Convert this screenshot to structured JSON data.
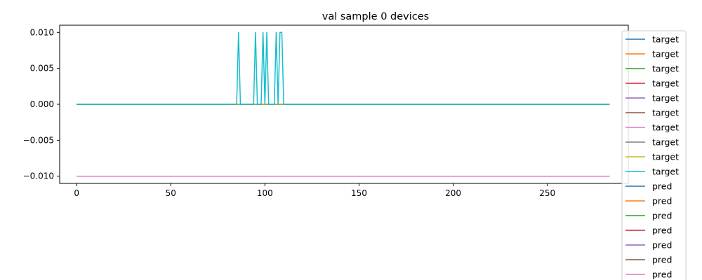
{
  "chart_data": {
    "type": "line",
    "title": "val sample 0 devices",
    "xlabel": "",
    "ylabel": "",
    "xlim": [
      -9,
      293
    ],
    "ylim": [
      -0.011,
      0.011
    ],
    "x_ticks": [
      0,
      50,
      100,
      150,
      200,
      250
    ],
    "y_ticks": [
      0.01,
      0.005,
      0.0,
      -0.005,
      -0.01
    ],
    "x_tick_labels": [
      "0",
      "50",
      "100",
      "150",
      "200",
      "250"
    ],
    "y_tick_labels": [
      "0.010",
      "0.005",
      "0.000",
      "−0.005",
      "−0.010"
    ],
    "grid": false,
    "legend_position": "upper-right",
    "x_range": [
      0,
      283
    ],
    "series": [
      {
        "name": "target",
        "color": "#1f77b4",
        "constant": 0.0
      },
      {
        "name": "target",
        "color": "#ff7f0e",
        "constant": 0.0
      },
      {
        "name": "target",
        "color": "#2ca02c",
        "constant": 0.0
      },
      {
        "name": "target",
        "color": "#d62728",
        "constant": 0.0
      },
      {
        "name": "target",
        "color": "#9467bd",
        "constant": 0.0
      },
      {
        "name": "target",
        "color": "#8c564b",
        "constant": 0.0
      },
      {
        "name": "target",
        "color": "#e377c2",
        "constant": 0.0
      },
      {
        "name": "target",
        "color": "#7f7f7f",
        "constant": 0.0
      },
      {
        "name": "target",
        "color": "#bcbd22",
        "constant": 0.0
      },
      {
        "name": "target",
        "color": "#17becf",
        "constant": 0.0,
        "spikes": [
          86,
          95,
          99,
          101,
          106,
          108,
          109
        ]
      },
      {
        "name": "pred",
        "color": "#1f77b4",
        "constant": -0.01
      },
      {
        "name": "pred",
        "color": "#ff7f0e",
        "constant": -0.01
      },
      {
        "name": "pred",
        "color": "#2ca02c",
        "constant": -0.01
      },
      {
        "name": "pred",
        "color": "#d62728",
        "constant": -0.01
      },
      {
        "name": "pred",
        "color": "#9467bd",
        "constant": -0.01
      },
      {
        "name": "pred",
        "color": "#8c564b",
        "constant": -0.01
      },
      {
        "name": "pred",
        "color": "#e377c2",
        "constant": -0.01
      }
    ],
    "spike_value": 0.01
  }
}
